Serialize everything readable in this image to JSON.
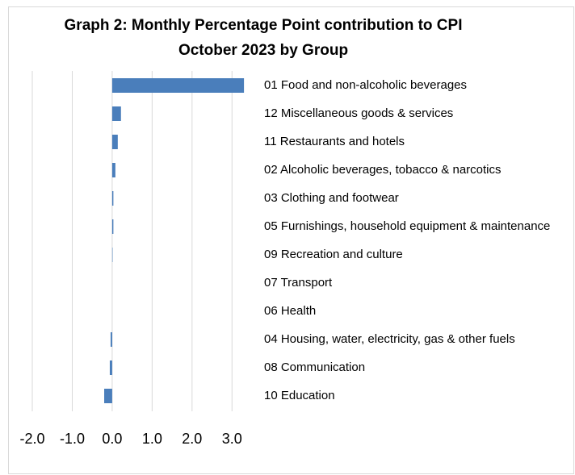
{
  "chart_data": {
    "type": "hbar",
    "title": [
      "Graph 2: Monthly Percentage Point contribution to CPI",
      "October 2023 by  Group"
    ],
    "categories": [
      "01 Food and non-alcoholic beverages",
      "12 Miscellaneous goods & services",
      "11 Restaurants and hotels",
      "02 Alcoholic beverages, tobacco & narcotics",
      "03 Clothing and footwear",
      "05 Furnishings, household equipment & maintenance",
      "09 Recreation and culture",
      "07 Transport",
      "06 Health",
      "04 Housing, water, electricity, gas & other fuels",
      "08 Communication",
      "10 Education"
    ],
    "values": [
      3.3,
      0.22,
      0.14,
      0.08,
      0.03,
      0.03,
      0.01,
      0,
      0,
      -0.04,
      -0.06,
      -0.2
    ],
    "color": "#4a7ebb",
    "xlim": [
      -2,
      3.5
    ],
    "xticks": [
      {
        "value": -2,
        "label": "-2.0"
      },
      {
        "value": -1,
        "label": "-1.0"
      },
      {
        "value": 0,
        "label": "0.0"
      },
      {
        "value": 1,
        "label": "1.0"
      },
      {
        "value": 2,
        "label": "2.0"
      },
      {
        "value": 3,
        "label": "3.0"
      }
    ],
    "grid": true
  }
}
